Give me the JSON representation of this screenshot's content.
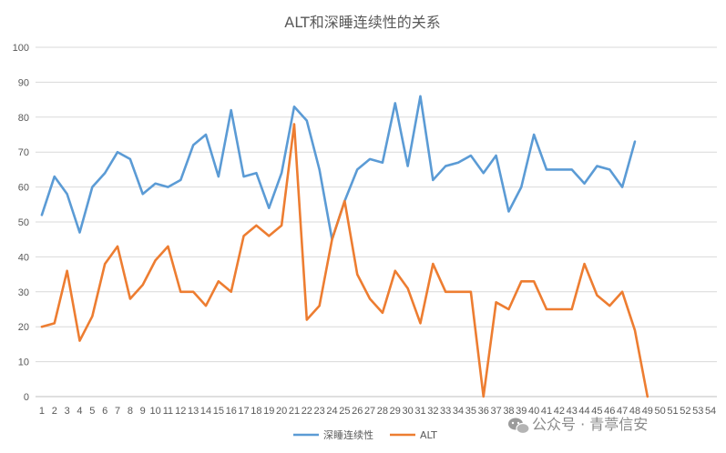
{
  "chart_data": {
    "type": "line",
    "title": "ALT和深睡连续性的关系",
    "xlabel": "",
    "ylabel": "",
    "categories": [
      "1",
      "2",
      "3",
      "4",
      "5",
      "6",
      "7",
      "8",
      "9",
      "10",
      "11",
      "12",
      "13",
      "14",
      "15",
      "16",
      "17",
      "18",
      "19",
      "20",
      "21",
      "22",
      "23",
      "24",
      "25",
      "26",
      "27",
      "28",
      "29",
      "30",
      "31",
      "32",
      "33",
      "34",
      "35",
      "36",
      "37",
      "38",
      "39",
      "40",
      "41",
      "42",
      "43",
      "44",
      "45",
      "46",
      "47",
      "48",
      "49",
      "50",
      "51",
      "52",
      "53",
      "54"
    ],
    "ylim": [
      0,
      100
    ],
    "yticks": [
      "0",
      "10",
      "20",
      "30",
      "40",
      "50",
      "60",
      "70",
      "80",
      "90",
      "100"
    ],
    "grid": true,
    "legend_position": "bottom",
    "series": [
      {
        "name": "深睡连续性",
        "color": "#5b9bd5",
        "values": [
          52,
          63,
          58,
          47,
          60,
          64,
          70,
          68,
          58,
          61,
          60,
          62,
          72,
          75,
          63,
          82,
          63,
          64,
          54,
          64,
          83,
          79,
          65,
          45,
          56,
          65,
          68,
          67,
          84,
          66,
          86,
          62,
          66,
          67,
          69,
          64,
          69,
          53,
          60,
          75,
          65,
          65,
          65,
          61,
          66,
          65,
          60,
          73,
          null,
          null,
          null,
          null,
          null,
          null
        ]
      },
      {
        "name": "ALT",
        "color": "#ed7d31",
        "values": [
          20,
          21,
          36,
          16,
          23,
          38,
          43,
          28,
          32,
          39,
          43,
          30,
          30,
          26,
          33,
          30,
          46,
          49,
          46,
          49,
          78,
          22,
          26,
          45,
          56,
          35,
          28,
          24,
          36,
          31,
          21,
          38,
          30,
          30,
          30,
          0,
          27,
          25,
          33,
          33,
          25,
          25,
          25,
          38,
          29,
          26,
          30,
          19,
          0,
          null,
          null,
          null,
          null,
          null
        ]
      }
    ]
  },
  "watermark": {
    "icon": "wechat-icon",
    "text": "公众号 · 青葶信安"
  }
}
